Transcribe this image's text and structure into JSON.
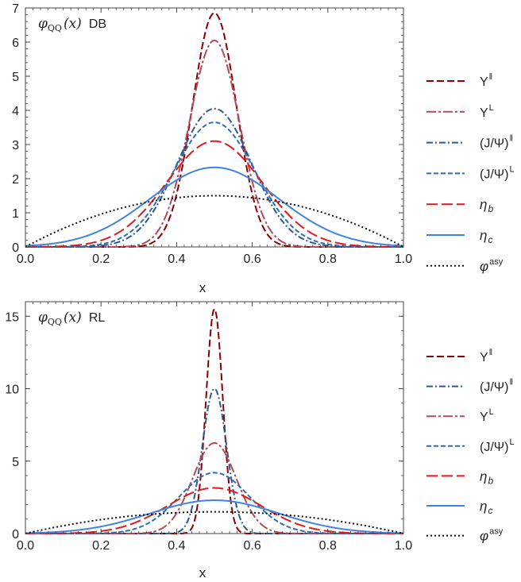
{
  "chart_data": [
    {
      "type": "line",
      "panel_label": "φ_QQ(x)",
      "panel_label_symbol": "φ",
      "panel_label_subscript": "QQ",
      "panel_label_arg": "(x)",
      "panel_tag": "DB",
      "xlabel": "x",
      "ylabel": "",
      "xlim": [
        0,
        1
      ],
      "ylim": [
        0,
        7
      ],
      "xticks": [
        "0.0",
        "0.2",
        "0.4",
        "0.6",
        "0.8",
        "1.0"
      ],
      "yticks": [
        "0",
        "1",
        "2",
        "3",
        "4",
        "5",
        "6",
        "7"
      ],
      "legend_position": "right",
      "series": [
        {
          "name": "Υ‖",
          "base": "Υ",
          "sup": "‖",
          "color": "#8b0000",
          "dash": "9,4",
          "kind": "gauss",
          "peak": 6.85,
          "sigma": 0.058
        },
        {
          "name": "ΥL",
          "base": "Υ",
          "sup": "L",
          "color": "#b24a5a",
          "dash": "12,3,3,3",
          "kind": "gauss",
          "peak": 6.05,
          "sigma": 0.066
        },
        {
          "name": "(J/Ψ)‖",
          "base": "(J/Ψ)",
          "sup": "‖",
          "color": "#2c5a8c",
          "dash": "8,3,2,3",
          "kind": "gauss",
          "peak": 4.05,
          "sigma": 0.098
        },
        {
          "name": "(J/Ψ)L",
          "base": "(J/Ψ)",
          "sup": "L",
          "color": "#2d6db2",
          "dash": "6,3",
          "kind": "gauss",
          "peak": 3.65,
          "sigma": 0.108
        },
        {
          "name": "η_b",
          "base": "η",
          "sub": "b",
          "color": "#e0191e",
          "dash": "14,5",
          "kind": "gauss",
          "peak": 3.1,
          "sigma": 0.127
        },
        {
          "name": "η_c",
          "base": "η",
          "sub": "c",
          "color": "#3d85e0",
          "dash": "",
          "kind": "gauss",
          "peak": 2.33,
          "sigma": 0.17
        },
        {
          "name": "φasy",
          "base": "φ",
          "sup": "asy",
          "color": "#111111",
          "dash": "2,3",
          "kind": "asy",
          "peak": 1.5
        }
      ]
    },
    {
      "type": "line",
      "panel_label": "φ_QQ(x)",
      "panel_label_symbol": "φ",
      "panel_label_subscript": "QQ",
      "panel_label_arg": "(x)",
      "panel_tag": "RL",
      "xlabel": "x",
      "ylabel": "",
      "xlim": [
        0,
        1
      ],
      "ylim": [
        0,
        16
      ],
      "xticks": [
        "0.0",
        "0.2",
        "0.4",
        "0.6",
        "0.8",
        "1.0"
      ],
      "yticks": [
        "0",
        "5",
        "10",
        "15"
      ],
      "legend_position": "right",
      "series": [
        {
          "name": "Υ‖",
          "base": "Υ",
          "sup": "‖",
          "color": "#8b0000",
          "dash": "9,4",
          "kind": "gauss",
          "peak": 15.5,
          "sigma": 0.022
        },
        {
          "name": "(J/Ψ)‖",
          "base": "(J/Ψ)",
          "sup": "‖",
          "color": "#2c5a8c",
          "dash": "8,3,2,3",
          "kind": "gauss",
          "peak": 10.0,
          "sigma": 0.032
        },
        {
          "name": "ΥL",
          "base": "Υ",
          "sup": "L",
          "color": "#b24a5a",
          "dash": "12,3,3,3",
          "kind": "gauss",
          "peak": 6.25,
          "sigma": 0.058
        },
        {
          "name": "(J/Ψ)L",
          "base": "(J/Ψ)",
          "sup": "L",
          "color": "#2d6db2",
          "dash": "6,3",
          "kind": "gauss",
          "peak": 4.2,
          "sigma": 0.093
        },
        {
          "name": "η_b",
          "base": "η",
          "sub": "b",
          "color": "#e0191e",
          "dash": "14,5",
          "kind": "gauss",
          "peak": 3.15,
          "sigma": 0.124
        },
        {
          "name": "η_c",
          "base": "η",
          "sub": "c",
          "color": "#3d85e0",
          "dash": "",
          "kind": "gauss",
          "peak": 2.3,
          "sigma": 0.17
        },
        {
          "name": "φasy",
          "base": "φ",
          "sup": "asy",
          "color": "#111111",
          "dash": "2,3",
          "kind": "asy",
          "peak": 1.5
        }
      ]
    }
  ]
}
